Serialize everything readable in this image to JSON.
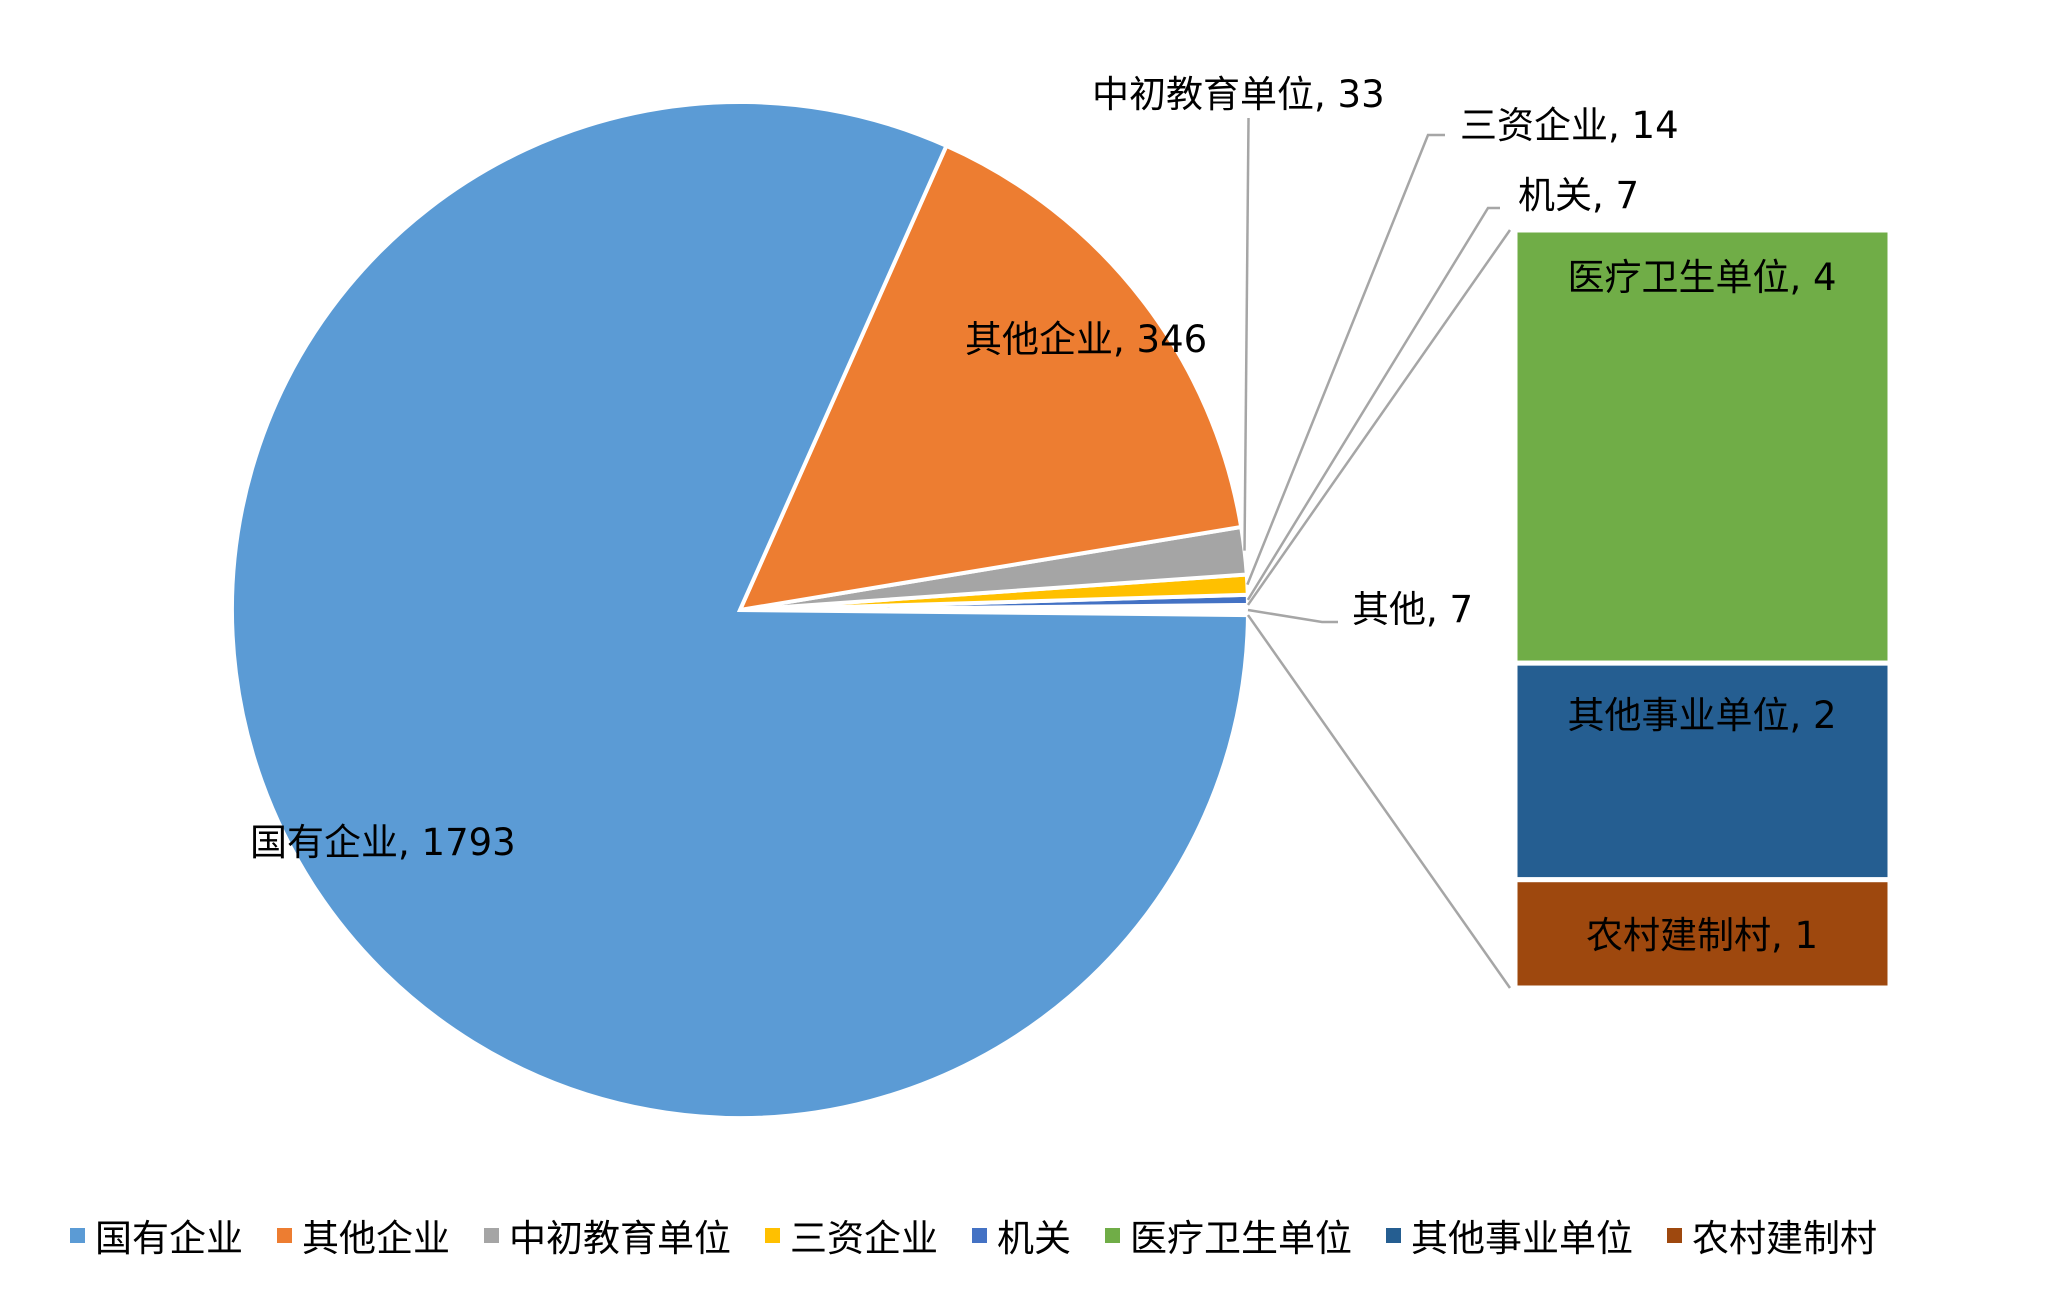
{
  "chart_data": {
    "type": "pie",
    "subtype": "bar-of-pie",
    "title": "",
    "slices": [
      {
        "label": "国有企业",
        "value": 1793,
        "color": "#5B9BD5"
      },
      {
        "label": "其他企业",
        "value": 346,
        "color": "#ED7D31"
      },
      {
        "label": "中初教育单位",
        "value": 33,
        "color": "#A5A5A5"
      },
      {
        "label": "三资企业",
        "value": 14,
        "color": "#FFC000"
      },
      {
        "label": "机关",
        "value": 7,
        "color": "#4472C4"
      },
      {
        "label": "其他",
        "value": 7,
        "color": "#FFFFFF"
      }
    ],
    "bar_breakdown": [
      {
        "label": "医疗卫生单位",
        "value": 4,
        "color": "#70AD47"
      },
      {
        "label": "其他事业单位",
        "value": 2,
        "color": "#255E91"
      },
      {
        "label": "农村建制村",
        "value": 1,
        "color": "#9E480E"
      }
    ],
    "data_labels": [
      "国有企业, 1793",
      "其他企业, 346",
      "中初教育单位, 33",
      "三资企业, 14",
      "机关, 7",
      "其他, 7",
      "医疗卫生单位, 4",
      "其他事业单位, 2",
      "农村建制村, 1"
    ],
    "legend": {
      "position": "bottom",
      "items": [
        {
          "label": "国有企业",
          "color": "#5B9BD5"
        },
        {
          "label": "其他企业",
          "color": "#ED7D31"
        },
        {
          "label": "中初教育单位",
          "color": "#A5A5A5"
        },
        {
          "label": "三资企业",
          "color": "#FFC000"
        },
        {
          "label": "机关",
          "color": "#4472C4"
        },
        {
          "label": "医疗卫生单位",
          "color": "#70AD47"
        },
        {
          "label": "其他事业单位",
          "color": "#255E91"
        },
        {
          "label": "农村建制村",
          "color": "#9E480E"
        }
      ]
    },
    "connector_color": "#A6A6A6"
  }
}
